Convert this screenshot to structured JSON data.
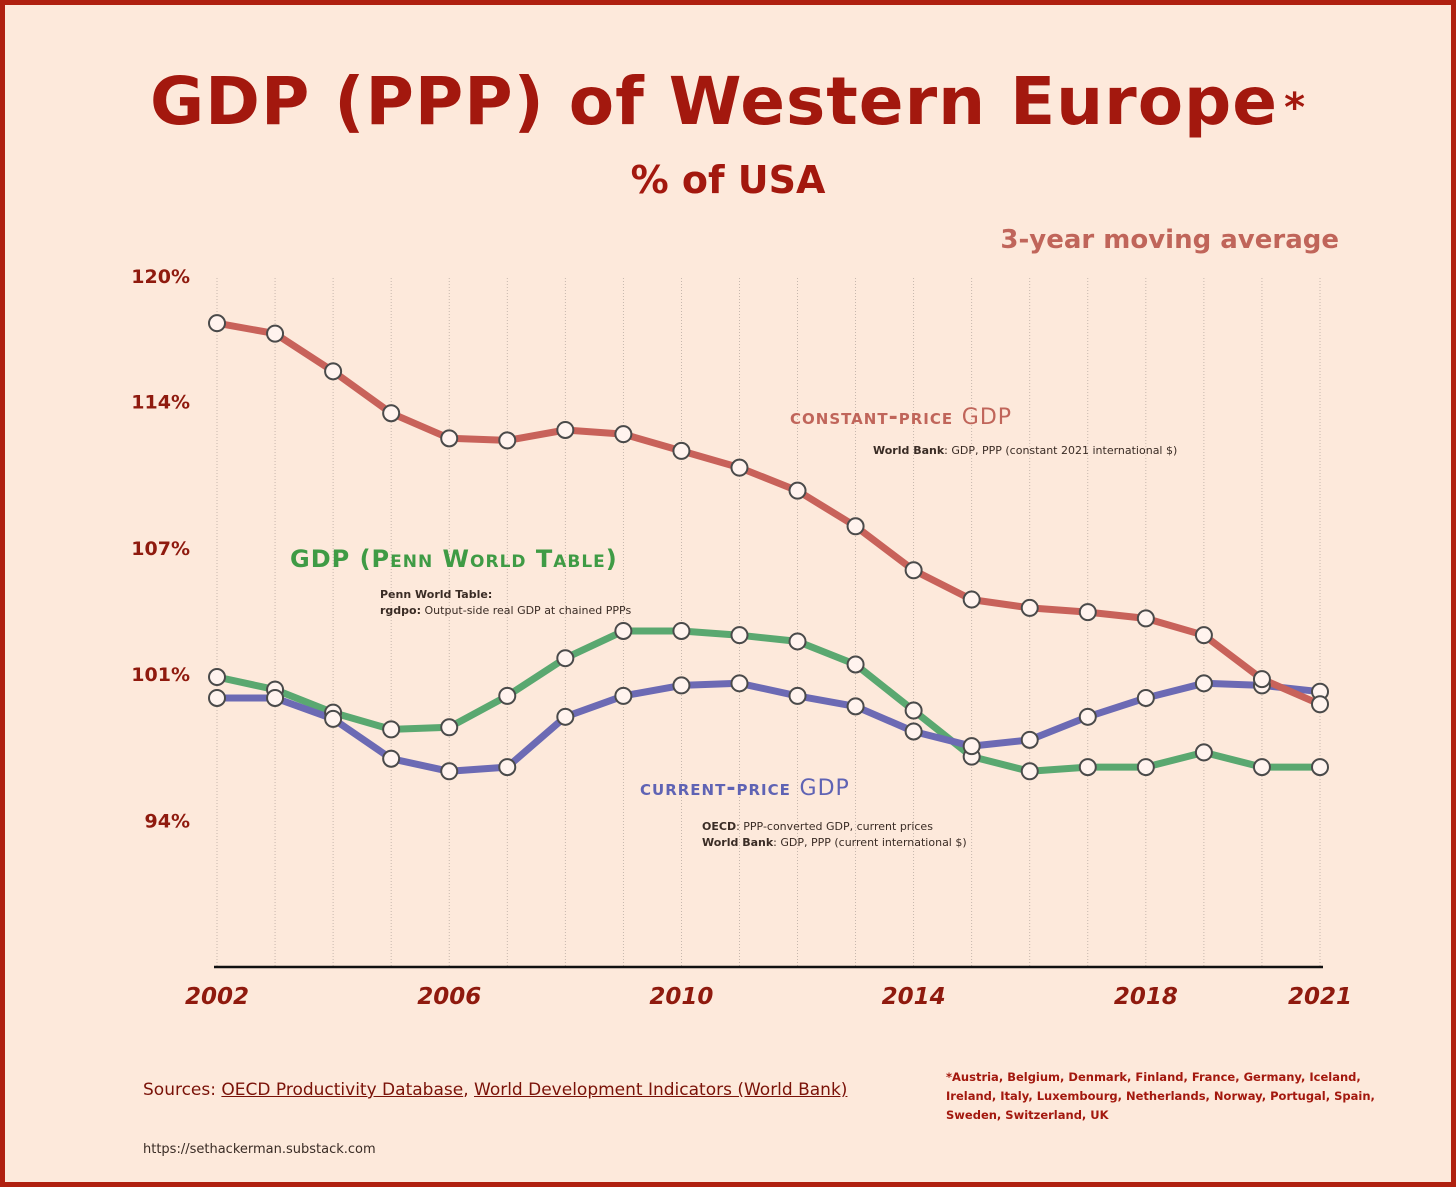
{
  "header": {
    "title": "GDP (PPP) of Western Europe",
    "title_mark": "*",
    "subtitle": "% of USA",
    "note": "3-year moving average"
  },
  "series_labels": {
    "constant": {
      "name_caps": "constant-price",
      "name_tail": "GDP",
      "src_org": "World Bank",
      "src_text": ": GDP, PPP (constant 2021 international $)",
      "color": "#c0655a"
    },
    "penn": {
      "name": "GDP (Penn World Table)",
      "src_line1": "Penn World Table:",
      "src_org": "rgdpo:",
      "src_text": " Output-side real GDP at chained PPPs",
      "color": "#3f9b45"
    },
    "current": {
      "name_caps": "current-price",
      "name_tail": "GDP",
      "src1_org": "OECD",
      "src1_text": ": PPP-converted GDP, current prices",
      "src2_org": "World Bank",
      "src2_text": ": GDP, PPP (current international $)",
      "color": "#5f63b4"
    }
  },
  "footer": {
    "sources_prefix": "Sources: ",
    "source_1": "OECD Productivity Database",
    "separator": ", ",
    "source_2": "World Development Indicators (World Bank)",
    "footnote": "*Austria, Belgium, Denmark, Finland, France, Germany, Iceland, Ireland, Italy, Luxembourg, Netherlands, Norway, Portugal, Spain, Sweden, Switzerland, UK",
    "url": "https://sethackerman.substack.com"
  },
  "chart_data": {
    "type": "line",
    "x": [
      2002,
      2003,
      2004,
      2005,
      2006,
      2007,
      2008,
      2009,
      2010,
      2011,
      2012,
      2013,
      2014,
      2015,
      2016,
      2017,
      2018,
      2019,
      2020,
      2021
    ],
    "x_tick_labels": [
      "2002",
      "2006",
      "2010",
      "2014",
      "2018",
      "2021"
    ],
    "y_ticks": [
      94,
      101,
      107,
      114,
      120
    ],
    "y_tick_labels": [
      "94%",
      "101%",
      "107%",
      "114%",
      "120%"
    ],
    "ylim": [
      87,
      120
    ],
    "grid": "vertical, one per year",
    "series": [
      {
        "name": "constant-price GDP",
        "color": "#c8625a",
        "values": [
          117.7,
          117.2,
          115.4,
          113.4,
          112.2,
          112.1,
          112.6,
          112.4,
          111.6,
          110.8,
          109.7,
          108.0,
          105.9,
          104.5,
          104.1,
          103.9,
          103.6,
          102.8,
          100.7,
          99.5
        ]
      },
      {
        "name": "GDP (Penn World Table)",
        "color": "#5aa870",
        "values": [
          100.8,
          100.2,
          99.1,
          98.3,
          98.4,
          99.9,
          101.7,
          103.0,
          103.0,
          102.8,
          102.5,
          101.4,
          99.2,
          97.0,
          96.3,
          96.5,
          96.5,
          97.2,
          96.5,
          96.5
        ]
      },
      {
        "name": "current-price GDP",
        "color": "#6c6ab4",
        "values": [
          99.8,
          99.8,
          98.8,
          96.9,
          96.3,
          96.5,
          98.9,
          99.9,
          100.4,
          100.5,
          99.9,
          99.4,
          98.2,
          97.5,
          97.8,
          98.9,
          99.8,
          100.5,
          100.4,
          100.1
        ]
      }
    ]
  }
}
